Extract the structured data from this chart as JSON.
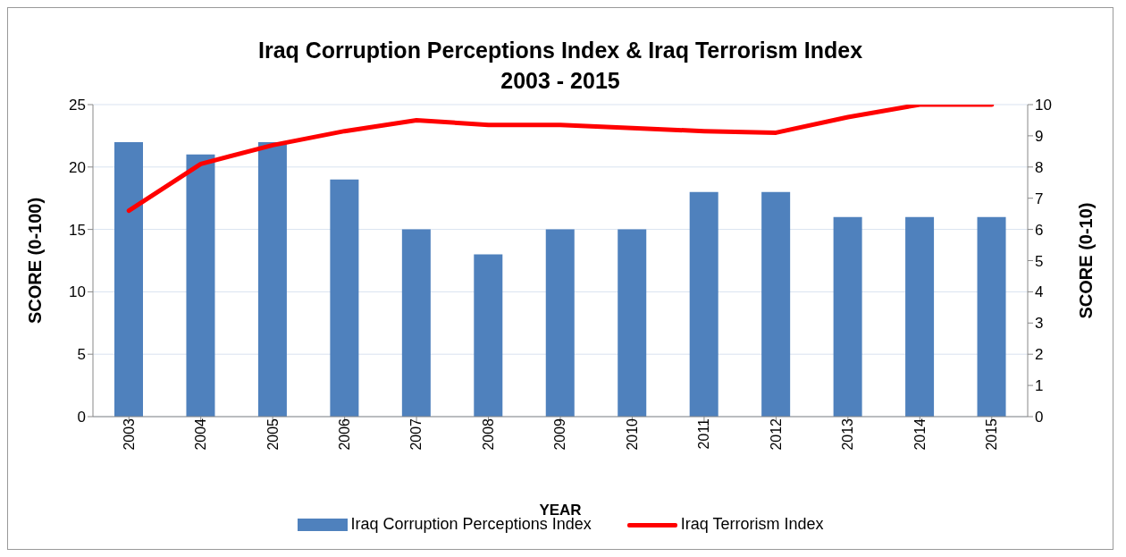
{
  "chart_data": {
    "type": "bar",
    "title": "Iraq Corruption Perceptions Index & Iraq Terrorism Index\n2003 - 2015",
    "xlabel": "YEAR",
    "ylabel": "SCORE (0-100)",
    "y2label": "SCORE (0-10)",
    "categories": [
      "2003",
      "2004",
      "2005",
      "2006",
      "2007",
      "2008",
      "2009",
      "2010",
      "2011",
      "2012",
      "2013",
      "2014",
      "2015"
    ],
    "series": [
      {
        "name": "Iraq Corruption Perceptions Index",
        "color": "#4f81bd",
        "values": [
          22,
          21,
          22,
          19,
          15,
          13,
          15,
          15,
          18,
          18,
          16,
          16,
          16
        ]
      },
      {
        "name": "Iraq Terrorism Index",
        "type": "line",
        "axis": "y2",
        "color": "#ff0000",
        "values": [
          6.6,
          8.1,
          8.7,
          9.15,
          9.5,
          9.35,
          9.35,
          9.25,
          9.15,
          9.1,
          9.6,
          10,
          10
        ]
      }
    ],
    "ylim": [
      0,
      25
    ],
    "yticks": [
      0,
      5,
      10,
      15,
      20,
      25
    ],
    "y2lim": [
      0,
      10
    ],
    "y2ticks": [
      0,
      1,
      2,
      3,
      4,
      5,
      6,
      7,
      8,
      9,
      10
    ],
    "grid": "y",
    "legend": "bottom",
    "marker": "none"
  }
}
